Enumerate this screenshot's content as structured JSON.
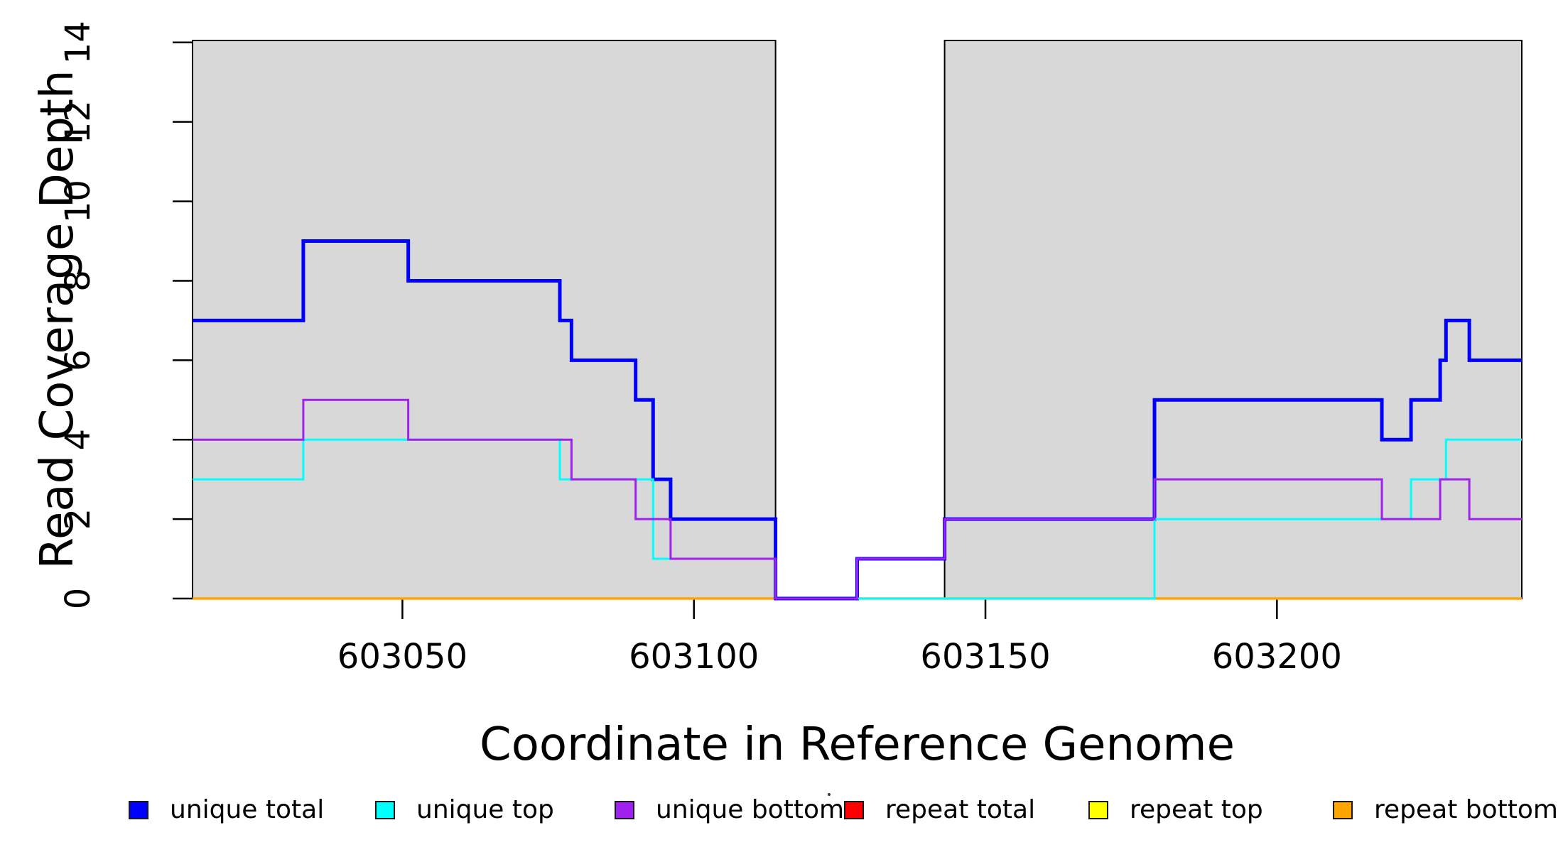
{
  "figure": {
    "background": "#FFFFFF",
    "text_color": "#000000"
  },
  "chart_data": {
    "type": "line",
    "subtype": "step",
    "title": "",
    "xlabel": "Coordinate in Reference Genome",
    "ylabel": "Read Coverage Depth",
    "xlim": [
      603014,
      603242
    ],
    "ylim": [
      0,
      14.05
    ],
    "x_ticks": [
      603050,
      603100,
      603150,
      603200
    ],
    "y_ticks": [
      0,
      2,
      4,
      6,
      8,
      10,
      12,
      14
    ],
    "grid": false,
    "shaded_regions": {
      "fill": "#D8D8D8",
      "border": "#000000",
      "ranges": [
        [
          603014,
          603114
        ],
        [
          603143,
          603242
        ]
      ]
    },
    "x_end": 603242,
    "series": [
      {
        "name": "repeat total",
        "color": "#FF0000",
        "width": 3,
        "steps": [
          [
            603014,
            0
          ]
        ]
      },
      {
        "name": "repeat top",
        "color": "#FFFF00",
        "width": 3,
        "steps": [
          [
            603014,
            0
          ]
        ]
      },
      {
        "name": "repeat bottom",
        "color": "#FFA500",
        "width": 3.5,
        "steps": [
          [
            603014,
            0
          ]
        ]
      },
      {
        "name": "unique total",
        "color": "#0000FF",
        "width": 5,
        "steps": [
          [
            603014,
            7
          ],
          [
            603033,
            9
          ],
          [
            603051,
            8
          ],
          [
            603077,
            7
          ],
          [
            603079,
            6
          ],
          [
            603090,
            5
          ],
          [
            603093,
            3
          ],
          [
            603096,
            2
          ],
          [
            603114,
            0
          ],
          [
            603128,
            1
          ],
          [
            603143,
            2
          ],
          [
            603179,
            5
          ],
          [
            603218,
            4
          ],
          [
            603223,
            5
          ],
          [
            603228,
            6
          ],
          [
            603229,
            7
          ],
          [
            603233,
            6
          ]
        ]
      },
      {
        "name": "unique top",
        "color": "#00FFFF",
        "width": 3,
        "steps": [
          [
            603014,
            3
          ],
          [
            603033,
            4
          ],
          [
            603077,
            3
          ],
          [
            603093,
            1
          ],
          [
            603114,
            0
          ],
          [
            603179,
            2
          ],
          [
            603223,
            3
          ],
          [
            603229,
            4
          ]
        ]
      },
      {
        "name": "unique bottom",
        "color": "#A020F0",
        "width": 3,
        "steps": [
          [
            603014,
            4
          ],
          [
            603033,
            5
          ],
          [
            603051,
            4
          ],
          [
            603079,
            3
          ],
          [
            603090,
            2
          ],
          [
            603096,
            1
          ],
          [
            603114,
            0
          ],
          [
            603128,
            1
          ],
          [
            603143,
            2
          ],
          [
            603179,
            3
          ],
          [
            603218,
            2
          ],
          [
            603228,
            3
          ],
          [
            603233,
            2
          ]
        ]
      }
    ],
    "legend": [
      {
        "label": "unique total",
        "color": "#0000FF"
      },
      {
        "label": "unique top",
        "color": "#00FFFF"
      },
      {
        "label": "unique bottom",
        "color": "#A020F0"
      },
      {
        "label": "repeat total",
        "color": "#FF0000"
      },
      {
        "label": "repeat top",
        "color": "#FFFF00"
      },
      {
        "label": "repeat bottom",
        "color": "#FFA500"
      }
    ]
  }
}
